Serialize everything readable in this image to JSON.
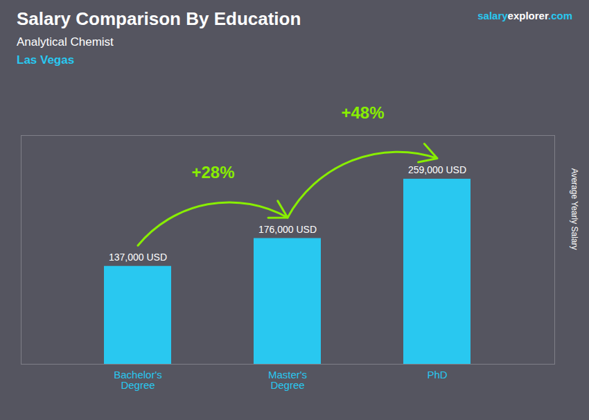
{
  "chart_data": {
    "type": "bar",
    "title": "Salary Comparison By Education",
    "subtitle": "Analytical Chemist",
    "ylabel": "Average Yearly Salary",
    "categories": [
      "Bachelor's\nDegree",
      "Master's\nDegree",
      "PhD"
    ],
    "values": [
      137000,
      176000,
      259000
    ],
    "value_labels": [
      "137,000 USD",
      "176,000 USD",
      "259,000 USD"
    ],
    "data_labels": true,
    "color": "#29C8F0",
    "ylim": [
      0,
      320000
    ],
    "tick_labels": "x",
    "grid": false,
    "annotations": [
      {
        "text": "Las Vegas",
        "color": "#29C8F0"
      },
      {
        "text": [
          "salary",
          "explorer",
          ".com"
        ],
        "colors": [
          "#29C8F0",
          "#ffffff",
          "#29C8F0"
        ]
      },
      {
        "text": "+28%",
        "from": "Bachelor's\nDegree",
        "to": "Master's\nDegree",
        "color": "#88EE00"
      },
      {
        "text": "+48%",
        "from": "Master's\nDegree",
        "to": "PhD",
        "color": "#88EE00"
      }
    ]
  }
}
